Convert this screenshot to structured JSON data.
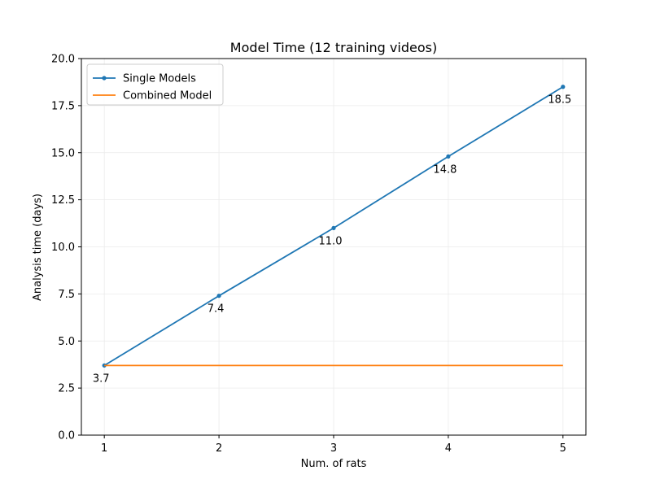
{
  "chart_data": {
    "type": "line",
    "title": "Model Time (12 training videos)",
    "xlabel": "Num. of rats",
    "ylabel": "Analysis time (days)",
    "x": [
      1,
      2,
      3,
      4,
      5
    ],
    "xticks": [
      "1",
      "2",
      "3",
      "4",
      "5"
    ],
    "xlim": [
      0.8,
      5.2
    ],
    "ylim": [
      0,
      20
    ],
    "yticks": [
      "0.0",
      "2.5",
      "5.0",
      "7.5",
      "10.0",
      "12.5",
      "15.0",
      "17.5",
      "20.0"
    ],
    "grid": true,
    "legend_position": "top-left",
    "series": [
      {
        "name": "Single Models",
        "values": [
          3.7,
          7.4,
          11.0,
          14.8,
          18.5
        ],
        "data_labels": [
          "3.7",
          "7.4",
          "11.0",
          "14.8",
          "18.5"
        ],
        "color": "#1f77b4",
        "markers": true
      },
      {
        "name": "Combined Model",
        "values": [
          3.7,
          3.7,
          3.7,
          3.7,
          3.7
        ],
        "color": "#ff7f0e",
        "markers": false
      }
    ]
  }
}
